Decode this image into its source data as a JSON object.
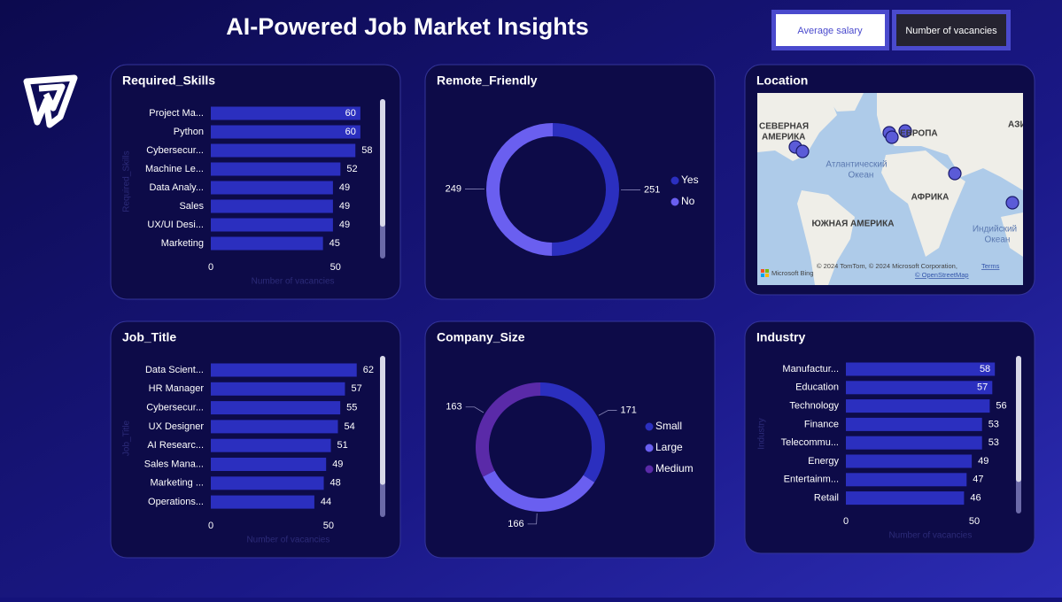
{
  "header": {
    "title": "AI-Powered Job Market Insights"
  },
  "buttons": [
    "Average salary",
    "Number of vacancies"
  ],
  "map": {
    "title": "Location",
    "labels": [
      "СЕВЕРНАЯ",
      "АМЕРИКА",
      "ЕВРОПА",
      "АЗИ",
      "Атлантический",
      "Океан",
      "АФРИКА",
      "ЮЖНАЯ АМЕРИКА",
      "Индийский",
      "Океан"
    ],
    "attribution": [
      "© 2024 TomTom, © 2024 Microsoft Corporation,",
      "Terms",
      "© OpenStreetMap",
      "Microsoft Bing"
    ]
  },
  "chart_data": [
    {
      "type": "bar",
      "title": "Required_Skills",
      "categories": [
        "Project Ma...",
        "Python",
        "Cybersecur...",
        "Machine Le...",
        "Data Analy...",
        "Sales",
        "UX/UI Desi...",
        "Marketing"
      ],
      "values": [
        60,
        60,
        58,
        52,
        49,
        49,
        49,
        45
      ],
      "color": "#2b2fbf",
      "xlim": [
        0,
        70
      ],
      "xticks": [
        0,
        50
      ],
      "xlabel": "Number of vacancies",
      "ylabel": "Required_Skills"
    },
    {
      "type": "donut",
      "title": "Remote_Friendly",
      "categories": [
        "Yes",
        "No"
      ],
      "values": [
        251,
        249
      ],
      "colors": [
        "#2b2fbf",
        "#6a5ff0"
      ]
    },
    {
      "type": "bar",
      "title": "Job_Title",
      "categories": [
        "Data Scient...",
        "HR Manager",
        "Cybersecur...",
        "UX Designer",
        "AI Researc...",
        "Sales Mana...",
        "Marketing ...",
        "Operations..."
      ],
      "values": [
        62,
        57,
        55,
        54,
        51,
        49,
        48,
        44
      ],
      "color": "#2b2fbf",
      "xlim": [
        0,
        70
      ],
      "xticks": [
        0,
        50
      ],
      "xlabel": "Number of vacancies",
      "ylabel": "Job_Title"
    },
    {
      "type": "donut",
      "title": "Company_Size",
      "categories": [
        "Small",
        "Large",
        "Medium"
      ],
      "values": [
        171,
        166,
        163
      ],
      "colors": [
        "#2b2fbf",
        "#6a5ff0",
        "#5a2aa8"
      ]
    },
    {
      "type": "bar",
      "title": "Industry",
      "categories": [
        "Manufactur...",
        "Education",
        "Technology",
        "Finance",
        "Telecommu...",
        "Energy",
        "Entertainm...",
        "Retail"
      ],
      "values": [
        58,
        57,
        56,
        53,
        53,
        49,
        47,
        46
      ],
      "color": "#2b2fbf",
      "xlim": [
        0,
        70
      ],
      "xticks": [
        0,
        50
      ],
      "xlabel": "Number of vacancies",
      "ylabel": "Industry"
    }
  ]
}
